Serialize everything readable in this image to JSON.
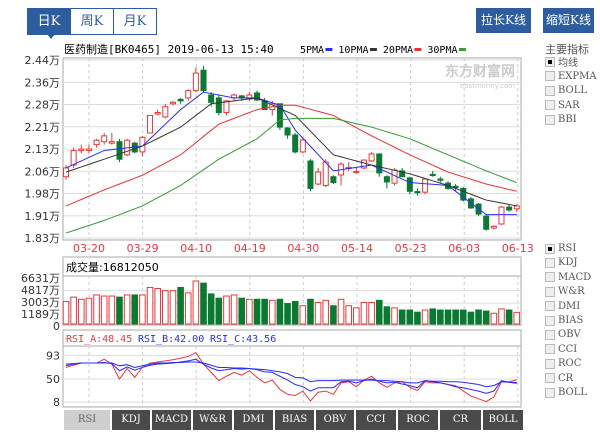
{
  "period_tabs": [
    {
      "label": "日K",
      "active": true
    },
    {
      "label": "周K",
      "active": false
    },
    {
      "label": "月K",
      "active": false
    }
  ],
  "buttons": {
    "stretch": "拉长K线",
    "shrink": "缩短K线"
  },
  "main": {
    "title": "医药制造[BK0465] 2019-06-13 15:40",
    "ma_legend": [
      {
        "label": "5PMA",
        "color": "#2a2aff"
      },
      {
        "label": "10PMA",
        "color": "#333333"
      },
      {
        "label": "20PMA",
        "color": "#e83333"
      },
      {
        "label": "30PMA",
        "color": "#3a9a3a"
      }
    ],
    "watermark": "东方财富网",
    "watermark_sub": "eastmoney.com"
  },
  "main_indicators": {
    "title": "主要指标",
    "items": [
      {
        "label": "均线",
        "checked": true
      },
      {
        "label": "EXPMA",
        "checked": false
      },
      {
        "label": "BOLL",
        "checked": false
      },
      {
        "label": "SAR",
        "checked": false
      },
      {
        "label": "BBI",
        "checked": false
      }
    ]
  },
  "sub_indicators": {
    "items": [
      {
        "label": "RSI",
        "checked": true
      },
      {
        "label": "KDJ",
        "checked": false
      },
      {
        "label": "MACD",
        "checked": false
      },
      {
        "label": "W&R",
        "checked": false
      },
      {
        "label": "DMI",
        "checked": false
      },
      {
        "label": "BIAS",
        "checked": false
      },
      {
        "label": "OBV",
        "checked": false
      },
      {
        "label": "CCI",
        "checked": false
      },
      {
        "label": "ROC",
        "checked": false
      },
      {
        "label": "CR",
        "checked": false
      },
      {
        "label": "BOLL",
        "checked": false
      }
    ]
  },
  "bottom_tabs": [
    {
      "label": "RSI",
      "active": true
    },
    {
      "label": "KDJ"
    },
    {
      "label": "MACD"
    },
    {
      "label": "W&R"
    },
    {
      "label": "DMI"
    },
    {
      "label": "BIAS"
    },
    {
      "label": "OBV"
    },
    {
      "label": "CCI"
    },
    {
      "label": "ROC"
    },
    {
      "label": "CR"
    },
    {
      "label": "BOLL"
    }
  ],
  "colors": {
    "up": "#e8383d",
    "down": "#0a7a33",
    "accent": "#2d5d9f",
    "rsi_a": "#e8383d",
    "rsi_b": "#2a2aff",
    "rsi_c": "#2a2aff"
  },
  "chart_data": {
    "type": "candlestick",
    "price_axis": {
      "ticks": [
        "2.44万",
        "2.36万",
        "2.28万",
        "2.21万",
        "2.13万",
        "2.06万",
        "1.98万",
        "1.91万",
        "1.83万"
      ],
      "ylim": [
        1.83,
        2.44
      ],
      "unit": "万"
    },
    "date_ticks": [
      "03-20",
      "03-29",
      "04-10",
      "04-19",
      "04-30",
      "05-14",
      "05-23",
      "06-03",
      "06-13"
    ],
    "ohlc": [
      [
        2.04,
        2.08,
        2.03,
        2.07
      ],
      [
        2.08,
        2.14,
        2.07,
        2.13
      ],
      [
        2.13,
        2.15,
        2.12,
        2.135
      ],
      [
        2.13,
        2.15,
        2.12,
        2.135
      ],
      [
        2.15,
        2.17,
        2.14,
        2.165
      ],
      [
        2.16,
        2.19,
        2.15,
        2.18
      ],
      [
        2.155,
        2.19,
        2.15,
        2.16
      ],
      [
        2.16,
        2.17,
        2.09,
        2.1
      ],
      [
        2.115,
        2.17,
        2.11,
        2.165
      ],
      [
        2.155,
        2.16,
        2.12,
        2.125
      ],
      [
        2.125,
        2.18,
        2.11,
        2.175
      ],
      [
        2.19,
        2.25,
        2.19,
        2.25
      ],
      [
        2.255,
        2.27,
        2.25,
        2.26
      ],
      [
        2.245,
        2.29,
        2.24,
        2.28
      ],
      [
        2.29,
        2.3,
        2.285,
        2.295
      ],
      [
        2.305,
        2.31,
        2.29,
        2.3
      ],
      [
        2.31,
        2.34,
        2.3,
        2.335
      ],
      [
        2.335,
        2.415,
        2.33,
        2.395
      ],
      [
        2.405,
        2.42,
        2.33,
        2.335
      ],
      [
        2.32,
        2.33,
        2.28,
        2.295
      ],
      [
        2.31,
        2.32,
        2.25,
        2.26
      ],
      [
        2.26,
        2.3,
        2.25,
        2.3
      ],
      [
        2.31,
        2.325,
        2.3,
        2.32
      ],
      [
        2.317,
        2.32,
        2.3,
        2.31
      ],
      [
        2.306,
        2.33,
        2.3,
        2.32
      ],
      [
        2.327,
        2.335,
        2.3,
        2.303
      ],
      [
        2.3,
        2.31,
        2.27,
        2.27
      ],
      [
        2.27,
        2.3,
        2.25,
        2.29
      ],
      [
        2.29,
        2.29,
        2.2,
        2.21
      ],
      [
        2.207,
        2.21,
        2.17,
        2.183
      ],
      [
        2.183,
        2.19,
        2.12,
        2.125
      ],
      [
        2.125,
        2.17,
        2.12,
        2.166
      ],
      [
        2.094,
        2.1,
        1.99,
        2.0
      ],
      [
        2.015,
        2.07,
        2.01,
        2.056
      ],
      [
        2.01,
        2.1,
        2.005,
        2.09
      ],
      [
        2.04,
        2.045,
        2.015,
        2.02
      ],
      [
        2.046,
        2.09,
        2.01,
        2.083
      ],
      [
        2.068,
        2.09,
        2.06,
        2.072
      ],
      [
        2.054,
        2.07,
        2.05,
        2.058
      ],
      [
        2.07,
        2.1,
        2.065,
        2.097
      ],
      [
        2.094,
        2.125,
        2.09,
        2.118
      ],
      [
        2.118,
        2.12,
        2.04,
        2.053
      ],
      [
        2.04,
        2.045,
        2.0,
        2.022
      ],
      [
        2.018,
        2.07,
        2.01,
        2.063
      ],
      [
        2.06,
        2.07,
        2.04,
        2.04
      ],
      [
        2.036,
        2.04,
        1.98,
        1.99
      ],
      [
        1.989,
        2.0,
        1.975,
        1.985
      ],
      [
        1.987,
        2.035,
        1.98,
        2.032
      ],
      [
        2.048,
        2.06,
        2.04,
        2.044
      ],
      [
        2.032,
        2.04,
        2.02,
        2.028
      ],
      [
        2.018,
        2.025,
        1.995,
        2.0
      ],
      [
        2.007,
        2.015,
        1.99,
        2.003
      ],
      [
        2.0,
        2.005,
        1.955,
        1.96
      ],
      [
        1.964,
        1.97,
        1.93,
        1.933
      ],
      [
        1.946,
        1.95,
        1.905,
        1.912
      ],
      [
        1.905,
        1.91,
        1.855,
        1.86
      ],
      [
        1.864,
        1.875,
        1.86,
        1.87
      ],
      [
        1.878,
        1.94,
        1.875,
        1.936
      ],
      [
        1.936,
        1.945,
        1.92,
        1.926
      ],
      [
        1.93,
        1.945,
        1.92,
        1.94
      ]
    ],
    "ma": {
      "5PMA": [
        2.07,
        null,
        null,
        null,
        null,
        2.13,
        null,
        null,
        null,
        null,
        2.145,
        null,
        null,
        null,
        null,
        2.27,
        null,
        null,
        2.33,
        null,
        null,
        null,
        2.31,
        null,
        null,
        2.31,
        null,
        null,
        2.285,
        null,
        2.2,
        null,
        null,
        null,
        null,
        2.06,
        null,
        null,
        null,
        null,
        2.08,
        null,
        null,
        null,
        null,
        2.02,
        null,
        null,
        null,
        null,
        2.01,
        null,
        null,
        null,
        null,
        1.91,
        null,
        null,
        null,
        1.91
      ],
      "10PMA": [
        2.056,
        null,
        null,
        null,
        null,
        2.1,
        null,
        null,
        null,
        null,
        2.145,
        null,
        null,
        null,
        null,
        2.21,
        null,
        null,
        null,
        2.29,
        null,
        null,
        null,
        null,
        null,
        2.31,
        null,
        null,
        null,
        null,
        2.25,
        null,
        null,
        null,
        null,
        2.115,
        null,
        null,
        null,
        null,
        2.08,
        null,
        null,
        null,
        null,
        2.05,
        null,
        null,
        null,
        null,
        2.01,
        null,
        null,
        null,
        null,
        1.96,
        null,
        null,
        null,
        1.94
      ],
      "20PMA": [
        1.94,
        null,
        null,
        null,
        null,
        1.995,
        null,
        null,
        null,
        null,
        2.045,
        null,
        null,
        null,
        null,
        2.115,
        null,
        null,
        null,
        null,
        2.22,
        null,
        null,
        null,
        null,
        2.27,
        null,
        null,
        2.285,
        null,
        2.285,
        null,
        null,
        null,
        null,
        2.25,
        null,
        null,
        null,
        null,
        2.18,
        null,
        null,
        null,
        null,
        2.115,
        null,
        null,
        null,
        null,
        2.056,
        null,
        null,
        null,
        null,
        2.015,
        null,
        null,
        null,
        1.99
      ],
      "30PMA": [
        1.847,
        null,
        null,
        null,
        null,
        1.89,
        null,
        null,
        null,
        null,
        1.94,
        null,
        null,
        null,
        null,
        2.01,
        null,
        null,
        null,
        null,
        2.1,
        null,
        null,
        null,
        null,
        2.17,
        null,
        null,
        2.235,
        null,
        2.24,
        null,
        null,
        null,
        null,
        2.24,
        null,
        null,
        null,
        null,
        2.21,
        null,
        null,
        null,
        null,
        2.17,
        null,
        null,
        null,
        null,
        2.115,
        null,
        null,
        null,
        null,
        2.06,
        null,
        null,
        null,
        2.02
      ]
    },
    "volume": {
      "label": "成交量:16812050",
      "ticks": [
        "6631万",
        "4817万",
        "3003万",
        "1189万",
        "0"
      ],
      "tick_values": [
        6631,
        4817,
        3003,
        1189,
        0
      ],
      "values": [
        3255,
        3875,
        3565,
        3720,
        4185,
        4030,
        4030,
        3875,
        4185,
        4185,
        4185,
        5270,
        5115,
        4805,
        4805,
        5270,
        4495,
        6200,
        5890,
        4340,
        3720,
        4030,
        4185,
        3720,
        3565,
        3565,
        3565,
        3410,
        3565,
        2945,
        3255,
        2635,
        3565,
        3100,
        3410,
        2635,
        3565,
        2635,
        2325,
        3100,
        3100,
        3410,
        2480,
        2325,
        2015,
        2015,
        1705,
        2015,
        2170,
        2015,
        2015,
        2015,
        2015,
        1705,
        2015,
        1860,
        1550,
        2170,
        2015,
        1681
      ]
    },
    "rsi": {
      "legend": [
        {
          "label": "RSI_A:48.45"
        },
        {
          "label": "RSI_B:42.00"
        },
        {
          "label": "RSI_C:43.56"
        }
      ],
      "ticks": [
        "93",
        "50",
        "8"
      ],
      "tick_values": [
        93,
        50,
        8
      ],
      "RSI_A": [
        71,
        75,
        79,
        79,
        79,
        86,
        77,
        50,
        69,
        53,
        71,
        79,
        81,
        83,
        85,
        88,
        91,
        98,
        77,
        62,
        47,
        55,
        62,
        57,
        65,
        53,
        43,
        48,
        31,
        22,
        20,
        28,
        10,
        26,
        28,
        22,
        43,
        45,
        36,
        48,
        55,
        43,
        35,
        43,
        45,
        35,
        29,
        45,
        43,
        43,
        40,
        38,
        28,
        19,
        14,
        9,
        17,
        45,
        45,
        48.45
      ],
      "RSI_B": [
        74,
        77,
        79,
        79,
        79,
        80,
        78,
        65,
        72,
        66,
        71,
        75,
        77,
        78,
        79,
        81,
        83,
        86,
        77,
        70,
        65,
        67,
        69,
        68,
        69,
        67,
        63,
        62,
        55,
        48,
        40,
        36,
        28,
        34,
        34,
        34,
        45,
        46,
        43,
        47,
        50,
        46,
        43,
        44,
        41,
        38,
        34,
        47,
        45,
        43,
        40,
        36,
        34,
        31,
        28,
        24,
        28,
        47,
        44,
        42
      ],
      "RSI_C": [
        77,
        78,
        79,
        79,
        79,
        79,
        79,
        74,
        76,
        71,
        74,
        77,
        79,
        79,
        80,
        80,
        81,
        81,
        79,
        75,
        71,
        71,
        70,
        70,
        69,
        68,
        67,
        65,
        63,
        60,
        53,
        52,
        45,
        47,
        47,
        47,
        48,
        48,
        48,
        48,
        48,
        47,
        47,
        46,
        45,
        43,
        43,
        47,
        46,
        46,
        45,
        45,
        44,
        42,
        40,
        36,
        38,
        45,
        44,
        43.56
      ]
    }
  }
}
